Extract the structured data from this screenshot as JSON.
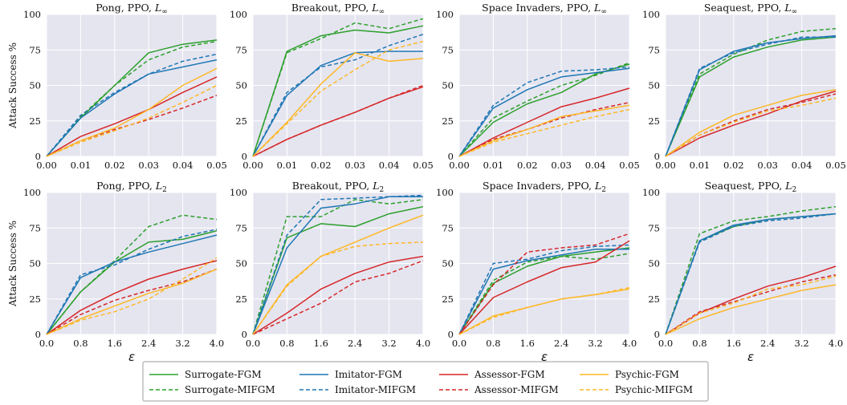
{
  "legend": [
    {
      "name": "Surrogate-FGM",
      "color": "#2ca02c",
      "dashed": false
    },
    {
      "name": "Surrogate-MIFGM",
      "color": "#2ca02c",
      "dashed": true
    },
    {
      "name": "Imitator-FGM",
      "color": "#1f77b4",
      "dashed": false
    },
    {
      "name": "Imitator-MIFGM",
      "color": "#1f77b4",
      "dashed": true
    },
    {
      "name": "Assessor-FGM",
      "color": "#d62728",
      "dashed": false
    },
    {
      "name": "Assessor-MIFGM",
      "color": "#d62728",
      "dashed": true
    },
    {
      "name": "Psychic-FGM",
      "color": "#fdb827",
      "dashed": false
    },
    {
      "name": "Psychic-MIFGM",
      "color": "#fdb827",
      "dashed": true
    }
  ],
  "chart_data": [
    {
      "type": "line",
      "title": "Pong, PPO, ",
      "title_sub": "L",
      "title_norm": "∞",
      "ylabel": "Attack Success %",
      "xlabel": "",
      "x": [
        0,
        0.01,
        0.02,
        0.03,
        0.04,
        0.05
      ],
      "xticks": [
        "0.00",
        "0.01",
        "0.02",
        "0.03",
        "0.04",
        "0.05"
      ],
      "ylim": [
        0,
        100
      ],
      "yticks": [
        "0",
        "25",
        "50",
        "75",
        "100"
      ],
      "series": [
        {
          "name": "Surrogate-FGM",
          "values": [
            0,
            27,
            50,
            73,
            79,
            82
          ]
        },
        {
          "name": "Surrogate-MIFGM",
          "values": [
            0,
            28,
            50,
            68,
            77,
            81
          ]
        },
        {
          "name": "Imitator-FGM",
          "values": [
            0,
            27,
            44,
            58,
            63,
            68
          ]
        },
        {
          "name": "Imitator-MIFGM",
          "values": [
            0,
            29,
            45,
            58,
            67,
            72
          ]
        },
        {
          "name": "Assessor-FGM",
          "values": [
            0,
            14,
            23,
            33,
            45,
            56
          ]
        },
        {
          "name": "Assessor-MIFGM",
          "values": [
            0,
            11,
            19,
            26,
            34,
            43
          ]
        },
        {
          "name": "Psychic-FGM",
          "values": [
            0,
            11,
            20,
            33,
            50,
            62
          ]
        },
        {
          "name": "Psychic-MIFGM",
          "values": [
            0,
            10,
            18,
            27,
            38,
            50
          ]
        }
      ]
    },
    {
      "type": "line",
      "title": "Breakout, PPO, ",
      "title_sub": "L",
      "title_norm": "∞",
      "ylabel": "",
      "xlabel": "",
      "x": [
        0,
        0.01,
        0.02,
        0.03,
        0.04,
        0.05
      ],
      "xticks": [
        "0.00",
        "0.01",
        "0.02",
        "0.03",
        "0.04",
        "0.05"
      ],
      "ylim": [
        0,
        100
      ],
      "yticks": [
        "0",
        "25",
        "50",
        "75",
        "100"
      ],
      "series": [
        {
          "name": "Surrogate-FGM",
          "values": [
            0,
            74,
            85,
            89,
            87,
            92
          ]
        },
        {
          "name": "Surrogate-MIFGM",
          "values": [
            0,
            73,
            83,
            94,
            90,
            97
          ]
        },
        {
          "name": "Imitator-FGM",
          "values": [
            0,
            43,
            64,
            73,
            74,
            74
          ]
        },
        {
          "name": "Imitator-MIFGM",
          "values": [
            0,
            45,
            63,
            68,
            78,
            86
          ]
        },
        {
          "name": "Assessor-FGM",
          "values": [
            0,
            12,
            22,
            31,
            41,
            49
          ]
        },
        {
          "name": "Assessor-MIFGM",
          "values": [
            0,
            12,
            22,
            31,
            41,
            50
          ]
        },
        {
          "name": "Psychic-FGM",
          "values": [
            0,
            24,
            51,
            73,
            67,
            69
          ]
        },
        {
          "name": "Psychic-MIFGM",
          "values": [
            0,
            23,
            46,
            61,
            75,
            81
          ]
        }
      ]
    },
    {
      "type": "line",
      "title": "Space Invaders, PPO, ",
      "title_sub": "L",
      "title_norm": "∞",
      "ylabel": "",
      "xlabel": "",
      "x": [
        0,
        0.01,
        0.02,
        0.03,
        0.04,
        0.05
      ],
      "xticks": [
        "0.00",
        "0.01",
        "0.02",
        "0.03",
        "0.04",
        "0.05"
      ],
      "ylim": [
        0,
        100
      ],
      "yticks": [
        "0",
        "25",
        "50",
        "75",
        "100"
      ],
      "series": [
        {
          "name": "Surrogate-FGM",
          "values": [
            0,
            24,
            37,
            45,
            58,
            65
          ]
        },
        {
          "name": "Surrogate-MIFGM",
          "values": [
            0,
            27,
            39,
            50,
            57,
            66
          ]
        },
        {
          "name": "Imitator-FGM",
          "values": [
            0,
            34,
            47,
            56,
            59,
            62
          ]
        },
        {
          "name": "Imitator-MIFGM",
          "values": [
            0,
            36,
            52,
            60,
            61,
            63
          ]
        },
        {
          "name": "Assessor-FGM",
          "values": [
            0,
            13,
            24,
            35,
            41,
            48
          ]
        },
        {
          "name": "Assessor-MIFGM",
          "values": [
            0,
            12,
            19,
            27,
            33,
            38
          ]
        },
        {
          "name": "Psychic-FGM",
          "values": [
            0,
            11,
            19,
            28,
            32,
            36
          ]
        },
        {
          "name": "Psychic-MIFGM",
          "values": [
            0,
            10,
            16,
            22,
            28,
            33
          ]
        }
      ]
    },
    {
      "type": "line",
      "title": "Seaquest, PPO, ",
      "title_sub": "L",
      "title_norm": "∞",
      "ylabel": "",
      "xlabel": "",
      "x": [
        0,
        0.01,
        0.02,
        0.03,
        0.04,
        0.05
      ],
      "xticks": [
        "0.00",
        "0.01",
        "0.02",
        "0.03",
        "0.04",
        "0.05"
      ],
      "ylim": [
        0,
        100
      ],
      "yticks": [
        "0",
        "25",
        "50",
        "75",
        "100"
      ],
      "series": [
        {
          "name": "Surrogate-FGM",
          "values": [
            0,
            56,
            70,
            77,
            82,
            84
          ]
        },
        {
          "name": "Surrogate-MIFGM",
          "values": [
            0,
            58,
            72,
            82,
            88,
            90
          ]
        },
        {
          "name": "Imitator-FGM",
          "values": [
            0,
            61,
            74,
            80,
            83,
            85
          ]
        },
        {
          "name": "Imitator-MIFGM",
          "values": [
            0,
            62,
            73,
            79,
            84,
            84
          ]
        },
        {
          "name": "Assessor-FGM",
          "values": [
            0,
            13,
            22,
            30,
            39,
            46
          ]
        },
        {
          "name": "Assessor-MIFGM",
          "values": [
            0,
            15,
            25,
            33,
            38,
            44
          ]
        },
        {
          "name": "Psychic-FGM",
          "values": [
            0,
            17,
            29,
            36,
            43,
            47
          ]
        },
        {
          "name": "Psychic-MIFGM",
          "values": [
            0,
            15,
            24,
            32,
            36,
            41
          ]
        }
      ]
    },
    {
      "type": "line",
      "title": "Pong, PPO, ",
      "title_sub": "L",
      "title_norm": "2",
      "ylabel": "Attack Success %",
      "xlabel": "ε",
      "x": [
        0,
        0.8,
        1.6,
        2.4,
        3.2,
        4.0
      ],
      "xticks": [
        "0.0",
        "0.8",
        "1.6",
        "2.4",
        "3.2",
        "4.0"
      ],
      "ylim": [
        0,
        100
      ],
      "yticks": [
        "0",
        "25",
        "50",
        "75",
        "100"
      ],
      "series": [
        {
          "name": "Surrogate-FGM",
          "values": [
            0,
            30,
            51,
            65,
            67,
            73
          ]
        },
        {
          "name": "Surrogate-MIFGM",
          "values": [
            0,
            30,
            52,
            76,
            84,
            81
          ]
        },
        {
          "name": "Imitator-FGM",
          "values": [
            0,
            40,
            51,
            58,
            64,
            70
          ]
        },
        {
          "name": "Imitator-MIFGM",
          "values": [
            0,
            42,
            49,
            60,
            69,
            74
          ]
        },
        {
          "name": "Assessor-FGM",
          "values": [
            0,
            17,
            29,
            39,
            46,
            52
          ]
        },
        {
          "name": "Assessor-MIFGM",
          "values": [
            0,
            14,
            24,
            31,
            37,
            46
          ]
        },
        {
          "name": "Psychic-FGM",
          "values": [
            0,
            11,
            20,
            29,
            36,
            46
          ]
        },
        {
          "name": "Psychic-MIFGM",
          "values": [
            0,
            10,
            16,
            25,
            39,
            54
          ]
        }
      ]
    },
    {
      "type": "line",
      "title": "Breakout, PPO, ",
      "title_sub": "L",
      "title_norm": "2",
      "ylabel": "",
      "xlabel": "",
      "x": [
        0,
        0.8,
        1.6,
        2.4,
        3.2,
        4.0
      ],
      "xticks": [
        "0.0",
        "0.8",
        "1.6",
        "2.4",
        "3.2",
        "4.0"
      ],
      "ylim": [
        0,
        100
      ],
      "yticks": [
        "0",
        "25",
        "50",
        "75",
        "100"
      ],
      "series": [
        {
          "name": "Surrogate-FGM",
          "values": [
            0,
            68,
            78,
            76,
            85,
            90
          ]
        },
        {
          "name": "Surrogate-MIFGM",
          "values": [
            0,
            83,
            83,
            95,
            92,
            95
          ]
        },
        {
          "name": "Imitator-FGM",
          "values": [
            0,
            61,
            89,
            92,
            97,
            97
          ]
        },
        {
          "name": "Imitator-MIFGM",
          "values": [
            0,
            70,
            95,
            96,
            97,
            98
          ]
        },
        {
          "name": "Assessor-FGM",
          "values": [
            0,
            15,
            32,
            43,
            51,
            55
          ]
        },
        {
          "name": "Assessor-MIFGM",
          "values": [
            0,
            11,
            22,
            37,
            43,
            52
          ]
        },
        {
          "name": "Psychic-FGM",
          "values": [
            0,
            35,
            55,
            65,
            75,
            84
          ]
        },
        {
          "name": "Psychic-MIFGM",
          "values": [
            0,
            34,
            55,
            62,
            64,
            65
          ]
        }
      ]
    },
    {
      "type": "line",
      "title": "Space Invaders, PPO, ",
      "title_sub": "L",
      "title_norm": "2",
      "ylabel": "",
      "xlabel": "ε",
      "x": [
        0,
        0.8,
        1.6,
        2.4,
        3.2,
        4.0
      ],
      "xticks": [
        "0.0",
        "0.8",
        "1.6",
        "2.4",
        "3.2",
        "4.0"
      ],
      "ylim": [
        0,
        100
      ],
      "yticks": [
        "0",
        "25",
        "50",
        "75",
        "100"
      ],
      "series": [
        {
          "name": "Surrogate-FGM",
          "values": [
            0,
            36,
            48,
            55,
            58,
            61
          ]
        },
        {
          "name": "Surrogate-MIFGM",
          "values": [
            0,
            38,
            51,
            55,
            53,
            57
          ]
        },
        {
          "name": "Imitator-FGM",
          "values": [
            0,
            46,
            52,
            56,
            60,
            60
          ]
        },
        {
          "name": "Imitator-MIFGM",
          "values": [
            0,
            50,
            53,
            59,
            62,
            63
          ]
        },
        {
          "name": "Assessor-FGM",
          "values": [
            0,
            26,
            37,
            47,
            51,
            66
          ]
        },
        {
          "name": "Assessor-MIFGM",
          "values": [
            0,
            35,
            58,
            61,
            63,
            71
          ]
        },
        {
          "name": "Psychic-FGM",
          "values": [
            0,
            13,
            19,
            25,
            28,
            32
          ]
        },
        {
          "name": "Psychic-MIFGM",
          "values": [
            0,
            12,
            19,
            25,
            28,
            33
          ]
        }
      ]
    },
    {
      "type": "line",
      "title": "Seaquest, PPO, ",
      "title_sub": "L",
      "title_norm": "2",
      "ylabel": "",
      "xlabel": "ε",
      "x": [
        0,
        0.8,
        1.6,
        2.4,
        3.2,
        4.0
      ],
      "xticks": [
        "0.0",
        "0.8",
        "1.6",
        "2.4",
        "3.2",
        "4.0"
      ],
      "ylim": [
        0,
        100
      ],
      "yticks": [
        "0",
        "25",
        "50",
        "75",
        "100"
      ],
      "series": [
        {
          "name": "Surrogate-FGM",
          "values": [
            0,
            66,
            76,
            81,
            83,
            85
          ]
        },
        {
          "name": "Surrogate-MIFGM",
          "values": [
            0,
            71,
            80,
            83,
            87,
            90
          ]
        },
        {
          "name": "Imitator-FGM",
          "values": [
            0,
            66,
            77,
            81,
            83,
            85
          ]
        },
        {
          "name": "Imitator-MIFGM",
          "values": [
            0,
            65,
            76,
            80,
            82,
            85
          ]
        },
        {
          "name": "Assessor-FGM",
          "values": [
            0,
            15,
            25,
            34,
            40,
            48
          ]
        },
        {
          "name": "Assessor-MIFGM",
          "values": [
            0,
            16,
            23,
            30,
            37,
            42
          ]
        },
        {
          "name": "Psychic-FGM",
          "values": [
            0,
            11,
            19,
            25,
            31,
            35
          ]
        },
        {
          "name": "Psychic-MIFGM",
          "values": [
            0,
            15,
            22,
            32,
            35,
            41
          ]
        }
      ]
    }
  ]
}
